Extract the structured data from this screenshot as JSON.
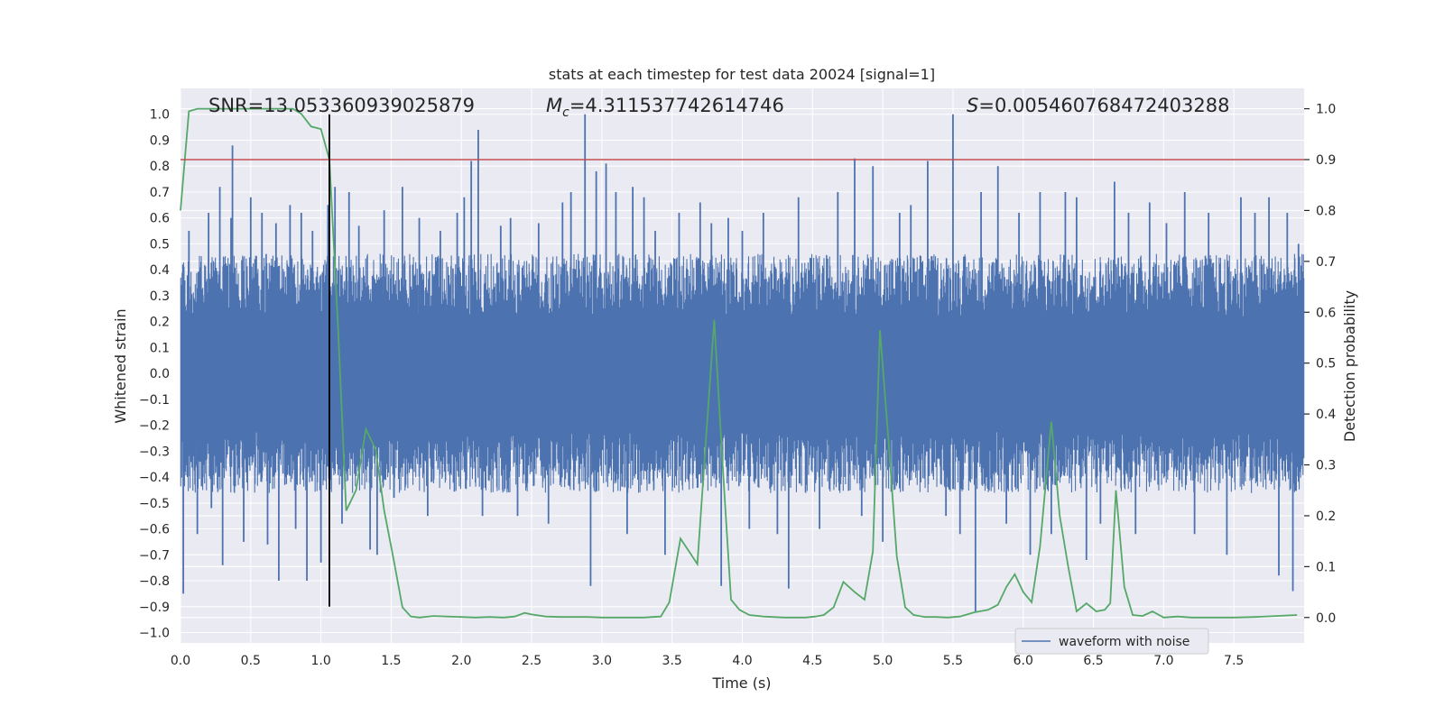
{
  "chart_data": {
    "type": "line",
    "title": "stats at each timestep for test data 20024 [signal=1]",
    "xlabel": "Time (s)",
    "ylabel": "Whitened strain",
    "ylabel_right": "Detection probability",
    "xlim": [
      0,
      8
    ],
    "ylim": [
      -1.04,
      1.1
    ],
    "ylim_right": [
      -0.05,
      1.04
    ],
    "xticks": [
      0.0,
      0.5,
      1.0,
      1.5,
      2.0,
      2.5,
      3.0,
      3.5,
      4.0,
      4.5,
      5.0,
      5.5,
      6.0,
      6.5,
      7.0,
      7.5
    ],
    "yticks": [
      1.0,
      0.9,
      0.8,
      0.7,
      0.6,
      0.5,
      0.4,
      0.3,
      0.2,
      0.1,
      0.0,
      -0.1,
      -0.2,
      -0.3,
      -0.4,
      -0.5,
      -0.6,
      -0.7,
      -0.8,
      -0.9,
      -1.0
    ],
    "yticks_right": [
      1.0,
      0.9,
      0.8,
      0.7,
      0.6,
      0.5,
      0.4,
      0.3,
      0.2,
      0.1,
      0.0
    ],
    "grid": true,
    "legend_position": "lower-right",
    "annotations": {
      "snr": "SNR=13.053360939025879",
      "mc_symbol": "M",
      "mc_sub": "c",
      "mc_value": "=4.311537742614746",
      "s_symbol": "S",
      "s_value": "=0.005460768472403288"
    },
    "threshold": {
      "value": 0.9,
      "axis": "right",
      "color": "#c44e52"
    },
    "marker_time": 1.06,
    "series": [
      {
        "name": "waveform with noise",
        "axis": "left",
        "color": "#4c72b0",
        "style": "dense noise band",
        "core_band": [
          -0.22,
          0.22
        ],
        "typical_envelope": [
          -0.45,
          0.45
        ],
        "spikes": [
          [
            0.02,
            -0.85
          ],
          [
            0.06,
            0.55
          ],
          [
            0.12,
            -0.62
          ],
          [
            0.2,
            0.62
          ],
          [
            0.22,
            -0.52
          ],
          [
            0.28,
            0.72
          ],
          [
            0.3,
            -0.74
          ],
          [
            0.36,
            0.6
          ],
          [
            0.37,
            0.88
          ],
          [
            0.45,
            -0.65
          ],
          [
            0.5,
            0.68
          ],
          [
            0.58,
            0.62
          ],
          [
            0.62,
            -0.66
          ],
          [
            0.68,
            0.58
          ],
          [
            0.7,
            -0.8
          ],
          [
            0.78,
            0.65
          ],
          [
            0.82,
            -0.6
          ],
          [
            0.86,
            0.62
          ],
          [
            0.9,
            -0.8
          ],
          [
            0.94,
            0.55
          ],
          [
            1.0,
            -0.73
          ],
          [
            1.05,
            0.65
          ],
          [
            1.1,
            0.72
          ],
          [
            1.15,
            -0.58
          ],
          [
            1.2,
            0.7
          ],
          [
            1.27,
            0.57
          ],
          [
            1.35,
            -0.68
          ],
          [
            1.4,
            -0.7
          ],
          [
            1.45,
            0.63
          ],
          [
            1.52,
            -0.48
          ],
          [
            1.58,
            0.72
          ],
          [
            1.7,
            0.6
          ],
          [
            1.76,
            -0.55
          ],
          [
            1.85,
            0.55
          ],
          [
            1.97,
            0.62
          ],
          [
            2.02,
            0.68
          ],
          [
            2.07,
            0.82
          ],
          [
            2.12,
            0.94
          ],
          [
            2.15,
            -0.55
          ],
          [
            2.28,
            0.57
          ],
          [
            2.35,
            0.6
          ],
          [
            2.4,
            -0.55
          ],
          [
            2.55,
            0.58
          ],
          [
            2.62,
            -0.58
          ],
          [
            2.72,
            0.66
          ],
          [
            2.78,
            0.7
          ],
          [
            2.88,
            1.0
          ],
          [
            2.92,
            -0.82
          ],
          [
            2.96,
            0.78
          ],
          [
            3.03,
            0.81
          ],
          [
            3.1,
            0.7
          ],
          [
            3.18,
            -0.62
          ],
          [
            3.22,
            0.72
          ],
          [
            3.3,
            0.68
          ],
          [
            3.38,
            0.55
          ],
          [
            3.45,
            -0.7
          ],
          [
            3.55,
            0.62
          ],
          [
            3.7,
            0.66
          ],
          [
            3.78,
            0.58
          ],
          [
            3.85,
            -0.82
          ],
          [
            3.9,
            0.6
          ],
          [
            4.0,
            0.55
          ],
          [
            4.05,
            -0.6
          ],
          [
            4.15,
            0.62
          ],
          [
            4.25,
            -0.62
          ],
          [
            4.33,
            -0.83
          ],
          [
            4.4,
            0.68
          ],
          [
            4.55,
            -0.6
          ],
          [
            4.68,
            0.7
          ],
          [
            4.8,
            0.83
          ],
          [
            4.85,
            -0.55
          ],
          [
            4.93,
            0.8
          ],
          [
            5.0,
            -0.65
          ],
          [
            5.12,
            0.62
          ],
          [
            5.2,
            0.65
          ],
          [
            5.32,
            0.82
          ],
          [
            5.45,
            -0.55
          ],
          [
            5.5,
            1.0
          ],
          [
            5.55,
            -0.62
          ],
          [
            5.66,
            -0.92
          ],
          [
            5.7,
            0.7
          ],
          [
            5.82,
            0.8
          ],
          [
            5.88,
            -0.58
          ],
          [
            5.97,
            0.62
          ],
          [
            6.05,
            -0.7
          ],
          [
            6.12,
            0.7
          ],
          [
            6.2,
            -0.62
          ],
          [
            6.3,
            0.7
          ],
          [
            6.38,
            0.68
          ],
          [
            6.45,
            -0.72
          ],
          [
            6.55,
            -0.58
          ],
          [
            6.65,
            0.74
          ],
          [
            6.75,
            0.62
          ],
          [
            6.8,
            -0.62
          ],
          [
            6.9,
            0.66
          ],
          [
            7.02,
            0.58
          ],
          [
            7.15,
            0.7
          ],
          [
            7.22,
            -0.62
          ],
          [
            7.32,
            0.62
          ],
          [
            7.45,
            -0.7
          ],
          [
            7.55,
            0.68
          ],
          [
            7.65,
            0.62
          ],
          [
            7.75,
            0.68
          ],
          [
            7.82,
            -0.78
          ],
          [
            7.88,
            0.62
          ],
          [
            7.92,
            -0.84
          ],
          [
            7.96,
            0.5
          ]
        ]
      },
      {
        "name": "",
        "axis": "right",
        "color": "#55a868",
        "x": [
          0.0,
          0.06,
          0.12,
          0.2,
          0.3,
          0.4,
          0.5,
          0.6,
          0.7,
          0.8,
          0.86,
          0.93,
          1.0,
          1.06,
          1.12,
          1.18,
          1.25,
          1.32,
          1.39,
          1.45,
          1.52,
          1.58,
          1.64,
          1.7,
          1.8,
          1.9,
          2.0,
          2.1,
          2.2,
          2.3,
          2.38,
          2.45,
          2.5,
          2.6,
          2.7,
          2.8,
          2.9,
          3.0,
          3.1,
          3.2,
          3.3,
          3.36,
          3.42,
          3.48,
          3.56,
          3.62,
          3.68,
          3.8,
          3.86,
          3.92,
          3.98,
          4.05,
          4.15,
          4.3,
          4.45,
          4.52,
          4.58,
          4.65,
          4.72,
          4.8,
          4.87,
          4.93,
          4.98,
          5.04,
          5.1,
          5.16,
          5.22,
          5.3,
          5.38,
          5.46,
          5.55,
          5.65,
          5.75,
          5.82,
          5.88,
          5.94,
          6.0,
          6.06,
          6.12,
          6.2,
          6.26,
          6.32,
          6.38,
          6.45,
          6.52,
          6.58,
          6.62,
          6.66,
          6.72,
          6.78,
          6.85,
          6.92,
          7.0,
          7.1,
          7.2,
          7.35,
          7.5,
          7.65,
          7.8,
          7.95
        ],
        "values": [
          0.8,
          0.995,
          1.0,
          1.0,
          1.0,
          1.0,
          1.0,
          1.0,
          1.0,
          1.0,
          0.99,
          0.965,
          0.96,
          0.9,
          0.58,
          0.21,
          0.25,
          0.37,
          0.33,
          0.21,
          0.11,
          0.02,
          0.002,
          0.0,
          0.003,
          0.002,
          0.001,
          0.0,
          0.001,
          0.0,
          0.002,
          0.009,
          0.006,
          0.002,
          0.001,
          0.001,
          0.001,
          0.0,
          0.0,
          0.0,
          0.0,
          0.001,
          0.002,
          0.03,
          0.155,
          0.13,
          0.105,
          0.585,
          0.3,
          0.035,
          0.015,
          0.005,
          0.002,
          0.0,
          0.0,
          0.002,
          0.005,
          0.02,
          0.07,
          0.05,
          0.035,
          0.13,
          0.565,
          0.35,
          0.12,
          0.02,
          0.005,
          0.001,
          0.001,
          0.0,
          0.002,
          0.01,
          0.015,
          0.025,
          0.06,
          0.085,
          0.05,
          0.03,
          0.14,
          0.385,
          0.2,
          0.1,
          0.012,
          0.028,
          0.012,
          0.015,
          0.028,
          0.25,
          0.06,
          0.005,
          0.003,
          0.012,
          0.0,
          0.002,
          0.0,
          0.0,
          0.0,
          0.001,
          0.003,
          0.005
        ]
      }
    ]
  }
}
